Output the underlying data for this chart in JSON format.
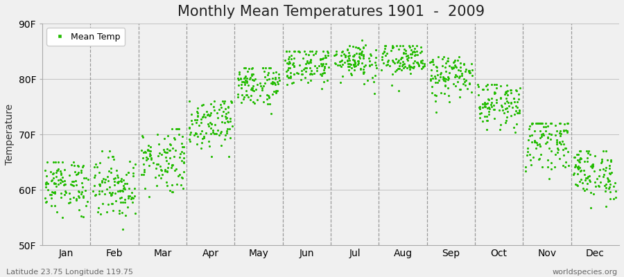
{
  "title": "Monthly Mean Temperatures 1901  -  2009",
  "ylabel": "Temperature",
  "legend_label": "Mean Temp",
  "subtitle": "Latitude 23.75 Longitude 119.75",
  "watermark": "worldspecies.org",
  "ylim": [
    50,
    90
  ],
  "yticks": [
    50,
    60,
    70,
    80,
    90
  ],
  "ytick_labels": [
    "50F",
    "60F",
    "70F",
    "80F",
    "90F"
  ],
  "months": [
    "Jan",
    "Feb",
    "Mar",
    "Apr",
    "May",
    "Jun",
    "Jul",
    "Aug",
    "Sep",
    "Oct",
    "Nov",
    "Dec"
  ],
  "dot_color": "#22BB00",
  "dot_size": 5,
  "bg_color": "#F0F0F0",
  "plot_bg_color": "#F0F0F0",
  "title_fontsize": 15,
  "axis_fontsize": 10,
  "tick_fontsize": 10,
  "monthly_data": {
    "Jan": {
      "mean": 61.0,
      "std": 2.5,
      "min": 54,
      "max": 65
    },
    "Feb": {
      "mean": 60.5,
      "std": 2.8,
      "min": 52,
      "max": 67
    },
    "Mar": {
      "mean": 65.5,
      "std": 3.0,
      "min": 57,
      "max": 71
    },
    "Apr": {
      "mean": 72.5,
      "std": 2.5,
      "min": 66,
      "max": 76
    },
    "May": {
      "mean": 79.0,
      "std": 2.0,
      "min": 73,
      "max": 82
    },
    "Jun": {
      "mean": 82.5,
      "std": 1.8,
      "min": 76,
      "max": 85
    },
    "Jul": {
      "mean": 83.5,
      "std": 1.8,
      "min": 77,
      "max": 87
    },
    "Aug": {
      "mean": 83.5,
      "std": 1.8,
      "min": 77,
      "max": 86
    },
    "Sep": {
      "mean": 80.5,
      "std": 2.0,
      "min": 74,
      "max": 84
    },
    "Oct": {
      "mean": 75.5,
      "std": 2.0,
      "min": 69,
      "max": 79
    },
    "Nov": {
      "mean": 69.0,
      "std": 2.5,
      "min": 62,
      "max": 72
    },
    "Dec": {
      "mean": 63.0,
      "std": 2.5,
      "min": 56,
      "max": 67
    }
  },
  "n_years": 109
}
